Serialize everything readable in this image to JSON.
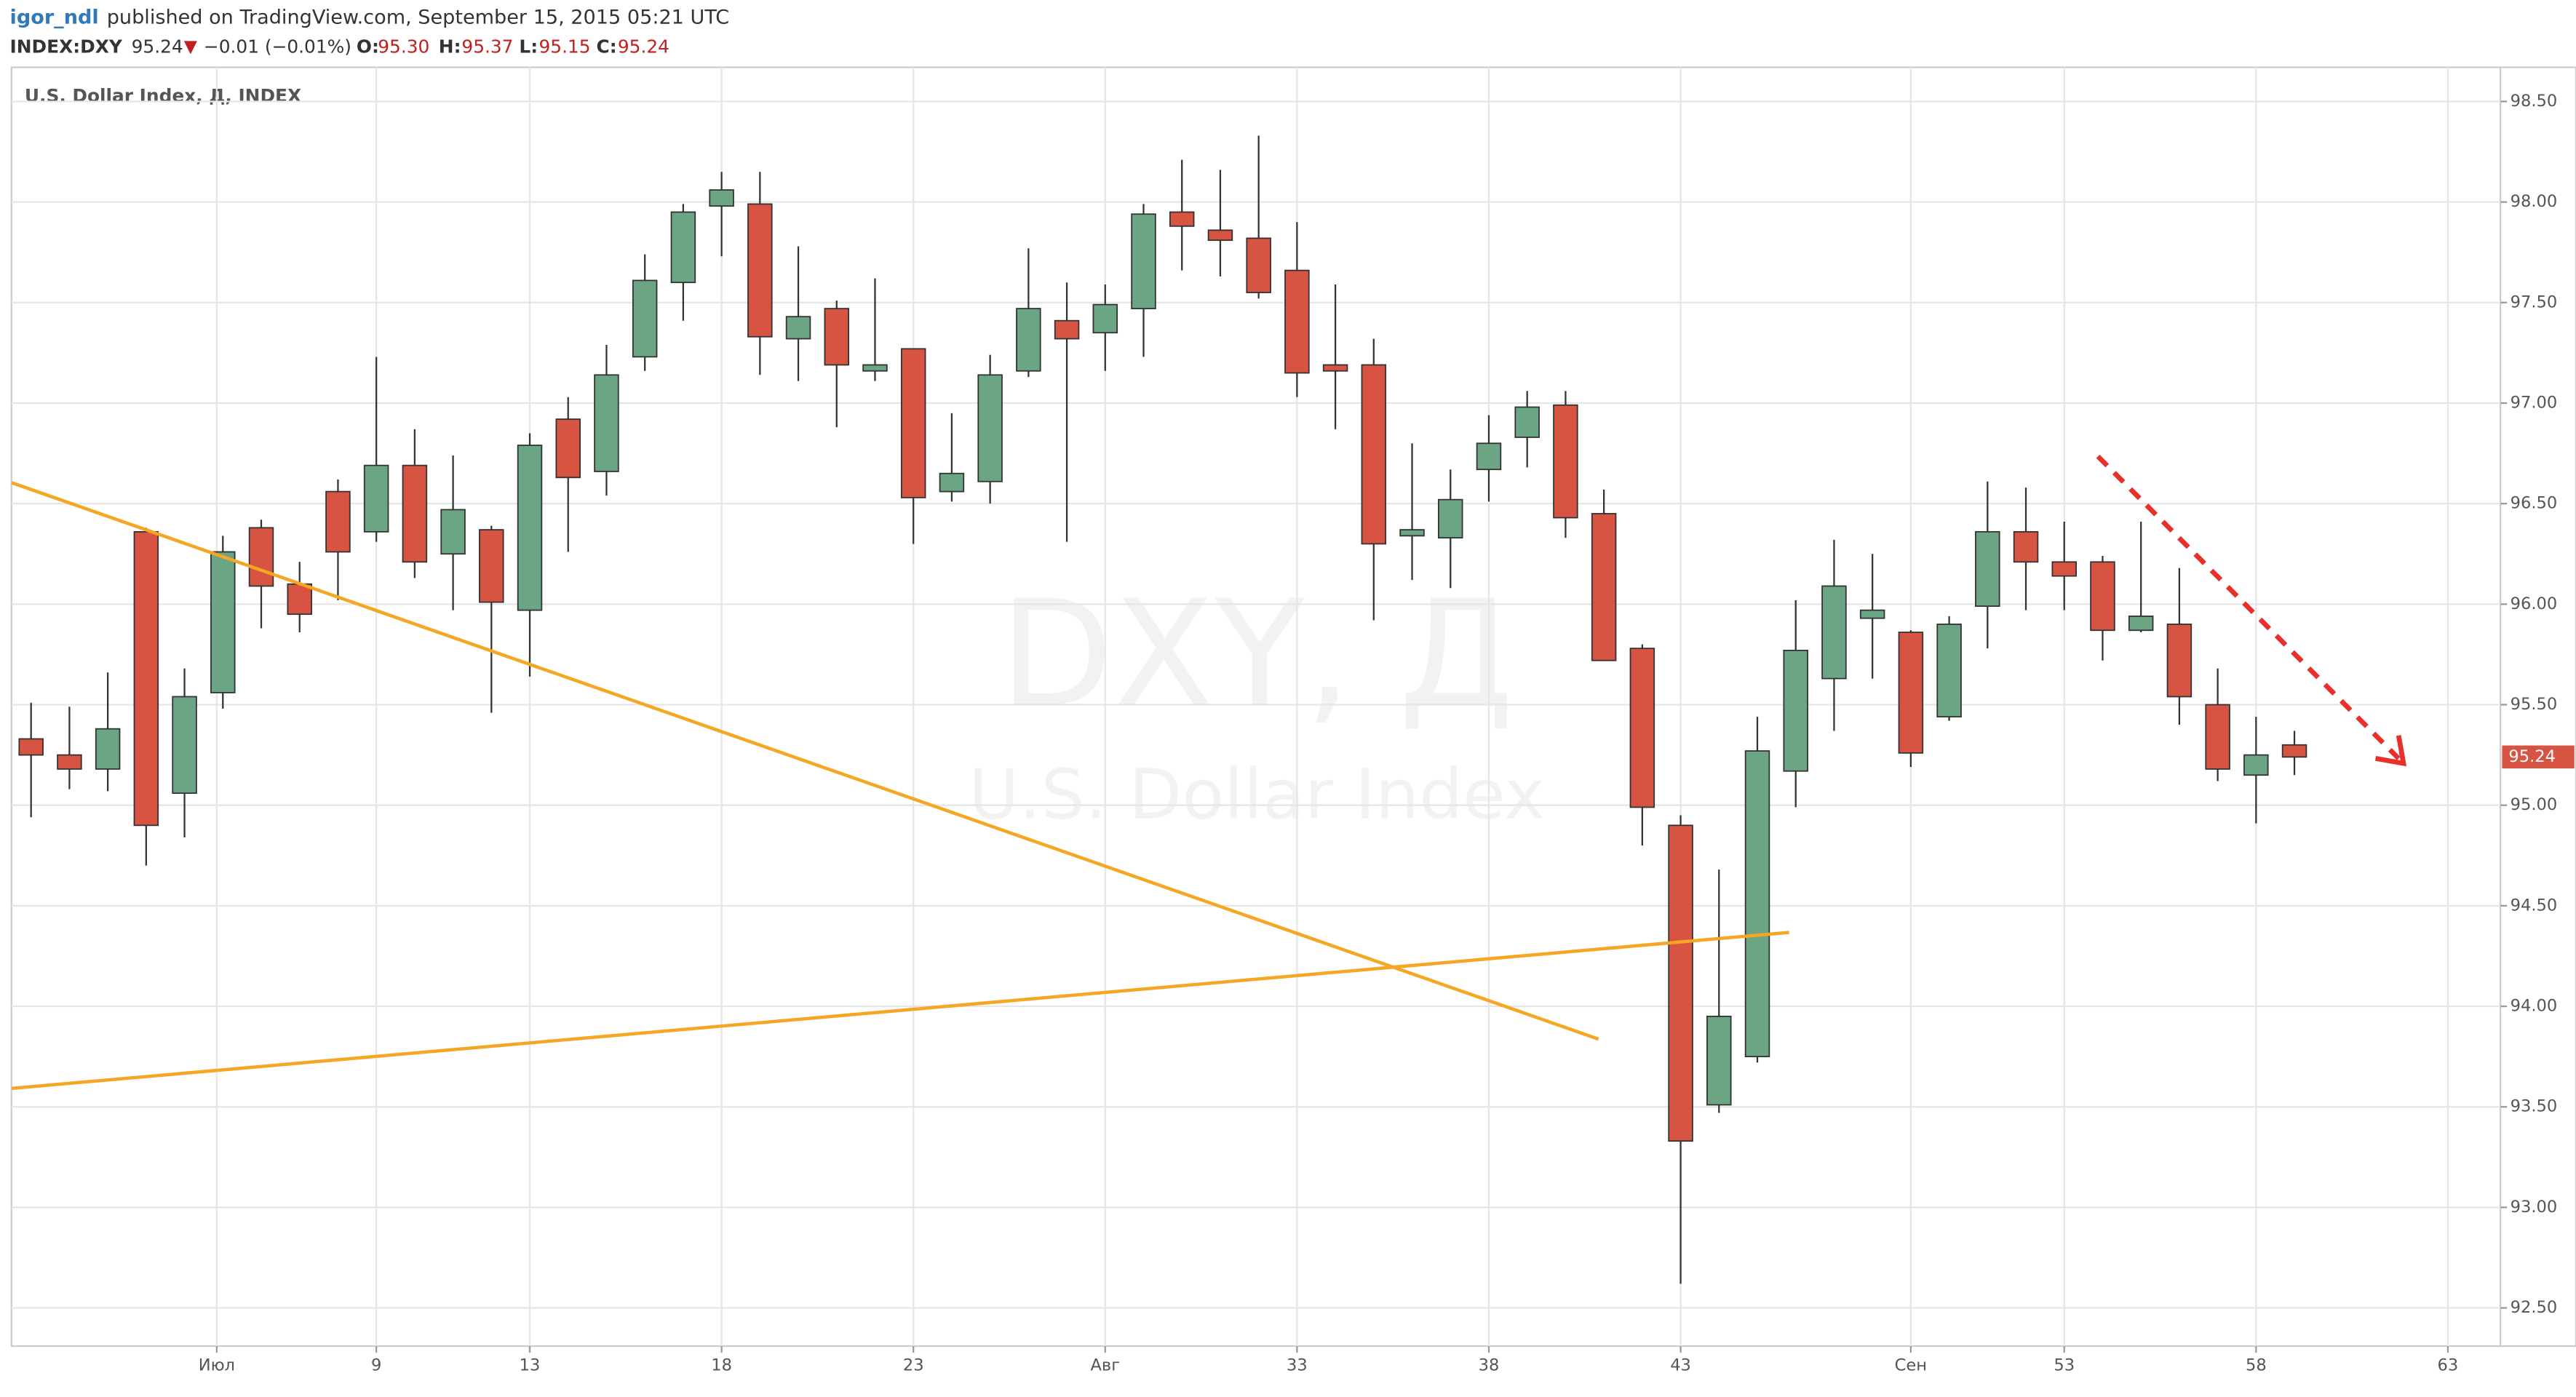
{
  "header": {
    "user": "igor_ndl",
    "published": "published on TradingView.com, September 15, 2015 05:21 UTC",
    "symbol": "INDEX:DXY",
    "last": "95.24",
    "change": "−0.01 (−0.01%)",
    "o_label": "O:",
    "o": "95.30",
    "h_label": "H:",
    "h": "95.37",
    "l_label": "L:",
    "l": "95.15",
    "c_label": "C:",
    "c": "95.24"
  },
  "chart_data": {
    "type": "candlestick",
    "title": "U.S. Dollar Index, Д, INDEX",
    "watermark": "DXY, Д",
    "watermark_sub": "U.S. Dollar Index",
    "up_color": "#6ba583",
    "down_color": "#d75442",
    "grid": true,
    "open": [
      95.33,
      95.25,
      95.18,
      96.36,
      95.06,
      95.56,
      96.38,
      96.1,
      96.56,
      96.36,
      96.69,
      96.25,
      96.37,
      95.97,
      96.92,
      96.66,
      97.23,
      97.6,
      97.98,
      97.99,
      97.32,
      97.47,
      97.16,
      97.27,
      96.56,
      96.61,
      97.16,
      97.41,
      97.35,
      97.47,
      97.95,
      97.86,
      97.82,
      97.66,
      97.19,
      97.19,
      96.34,
      96.33,
      96.67,
      96.83,
      96.99,
      96.45,
      95.78,
      94.9,
      93.51,
      93.75,
      95.17,
      95.63,
      95.93,
      95.86,
      95.44,
      95.99,
      96.36,
      96.21,
      96.21,
      95.87,
      95.9,
      95.5,
      95.15,
      95.3
    ],
    "high": [
      95.51,
      95.49,
      95.66,
      96.38,
      95.68,
      96.34,
      96.42,
      96.21,
      96.62,
      97.23,
      96.87,
      96.74,
      96.39,
      96.85,
      97.03,
      97.29,
      97.74,
      97.99,
      98.15,
      98.15,
      97.78,
      97.51,
      97.62,
      97.27,
      96.95,
      97.24,
      97.77,
      97.6,
      97.59,
      97.99,
      98.21,
      98.16,
      98.33,
      97.9,
      97.59,
      97.32,
      96.8,
      96.67,
      96.94,
      97.06,
      97.06,
      96.57,
      95.8,
      94.95,
      94.68,
      95.44,
      96.02,
      96.32,
      96.25,
      95.87,
      95.94,
      96.61,
      96.58,
      96.41,
      96.24,
      96.41,
      96.18,
      95.68,
      95.44,
      95.37
    ],
    "low": [
      94.94,
      95.08,
      95.07,
      94.7,
      94.84,
      95.48,
      95.88,
      95.86,
      96.02,
      96.31,
      96.13,
      95.97,
      95.46,
      95.64,
      96.26,
      96.54,
      97.16,
      97.41,
      97.73,
      97.14,
      97.11,
      96.88,
      97.11,
      96.3,
      96.51,
      96.5,
      97.13,
      96.31,
      97.16,
      97.23,
      97.66,
      97.63,
      97.52,
      97.03,
      96.87,
      95.92,
      96.12,
      96.08,
      96.51,
      96.68,
      96.33,
      95.72,
      94.8,
      92.62,
      93.47,
      93.72,
      94.99,
      95.37,
      95.63,
      95.19,
      95.42,
      95.78,
      95.97,
      95.97,
      95.72,
      95.86,
      95.4,
      95.12,
      94.91,
      95.15
    ],
    "close": [
      95.25,
      95.18,
      95.38,
      94.9,
      95.54,
      96.26,
      96.09,
      95.95,
      96.26,
      96.69,
      96.21,
      96.47,
      96.01,
      96.79,
      96.63,
      97.14,
      97.61,
      97.95,
      98.06,
      97.33,
      97.43,
      97.19,
      97.19,
      96.53,
      96.65,
      97.14,
      97.47,
      97.32,
      97.49,
      97.94,
      97.88,
      97.81,
      97.55,
      97.15,
      97.16,
      96.3,
      96.37,
      96.52,
      96.8,
      96.98,
      96.43,
      95.72,
      94.99,
      93.33,
      93.95,
      95.27,
      95.77,
      96.09,
      95.97,
      95.26,
      95.9,
      96.36,
      96.21,
      96.14,
      95.87,
      95.94,
      95.54,
      95.18,
      95.25,
      95.24
    ],
    "xlim": [
      -0.51,
      64.37
    ],
    "xticks": [
      {
        "value": 4.84,
        "label": "Июл"
      },
      9,
      13,
      18,
      23,
      {
        "value": 28,
        "label": "Авг"
      },
      33,
      38,
      43,
      {
        "value": 49,
        "label": "Сен"
      },
      53,
      58,
      63
    ],
    "ylim": [
      92.31,
      98.67
    ],
    "yticks": [
      {
        "value": 92.5,
        "label": "92.50"
      },
      {
        "value": 93,
        "label": "93.00"
      },
      {
        "value": 93.5,
        "label": "93.50"
      },
      {
        "value": 94,
        "label": "94.00"
      },
      {
        "value": 94.5,
        "label": "94.50"
      },
      {
        "value": 95,
        "label": "95.00"
      },
      {
        "value": 95.5,
        "label": "95.50"
      },
      {
        "value": 96,
        "label": "96.00"
      },
      {
        "value": 96.5,
        "label": "96.50"
      },
      {
        "value": 97,
        "label": "97.00"
      },
      {
        "value": 97.5,
        "label": "97.50"
      },
      {
        "value": 98,
        "label": "98.00"
      },
      {
        "value": 98.5,
        "label": "98.50"
      }
    ]
  }
}
